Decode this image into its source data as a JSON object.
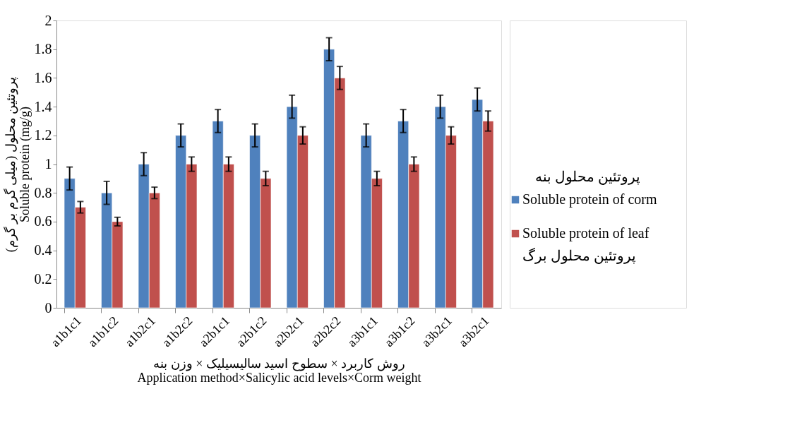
{
  "chart_data": {
    "type": "bar",
    "xlabel": "روش کاربرد × سطوح اسید سالیسیلیک × وزن بنه\nApplication method×Salicylic acid levels×Corm weight",
    "ylabel": "پروتئین محلول (میلی گرم بر گرم)\nSoluble protein (mg/g)",
    "legend_title": "پروتئین محلول بنه",
    "categories": [
      "a1b1c1",
      "a1b1c2",
      "a1b2c1",
      "a1b2c2",
      "a2b1c1",
      "a2b1c2",
      "a2b2c1",
      "a2b2c2",
      "a3b1c1",
      "a3b1c2",
      "a3b2c1",
      "a3b2c1"
    ],
    "series": [
      {
        "name": "Soluble protein of corm",
        "color": "#4f81bd",
        "values": [
          0.9,
          0.8,
          1.0,
          1.2,
          1.3,
          1.2,
          1.4,
          1.8,
          1.2,
          1.3,
          1.4,
          1.45
        ],
        "errors": [
          0.08,
          0.08,
          0.08,
          0.08,
          0.08,
          0.08,
          0.08,
          0.08,
          0.08,
          0.08,
          0.08,
          0.08
        ]
      },
      {
        "name": "Soluble protein of leaf\nپروتئین محلول برگ",
        "color": "#c0504d",
        "values": [
          0.7,
          0.6,
          0.8,
          1.0,
          1.0,
          0.9,
          1.2,
          1.6,
          0.9,
          1.0,
          1.2,
          1.3
        ],
        "errors": [
          0.04,
          0.03,
          0.04,
          0.05,
          0.05,
          0.05,
          0.06,
          0.08,
          0.05,
          0.05,
          0.06,
          0.07
        ]
      }
    ],
    "ylim": [
      0,
      2
    ],
    "yticks": [
      0,
      0.2,
      0.4,
      0.6,
      0.8,
      1,
      1.2,
      1.4,
      1.6,
      1.8,
      2
    ],
    "grid": false,
    "legend": "right"
  }
}
